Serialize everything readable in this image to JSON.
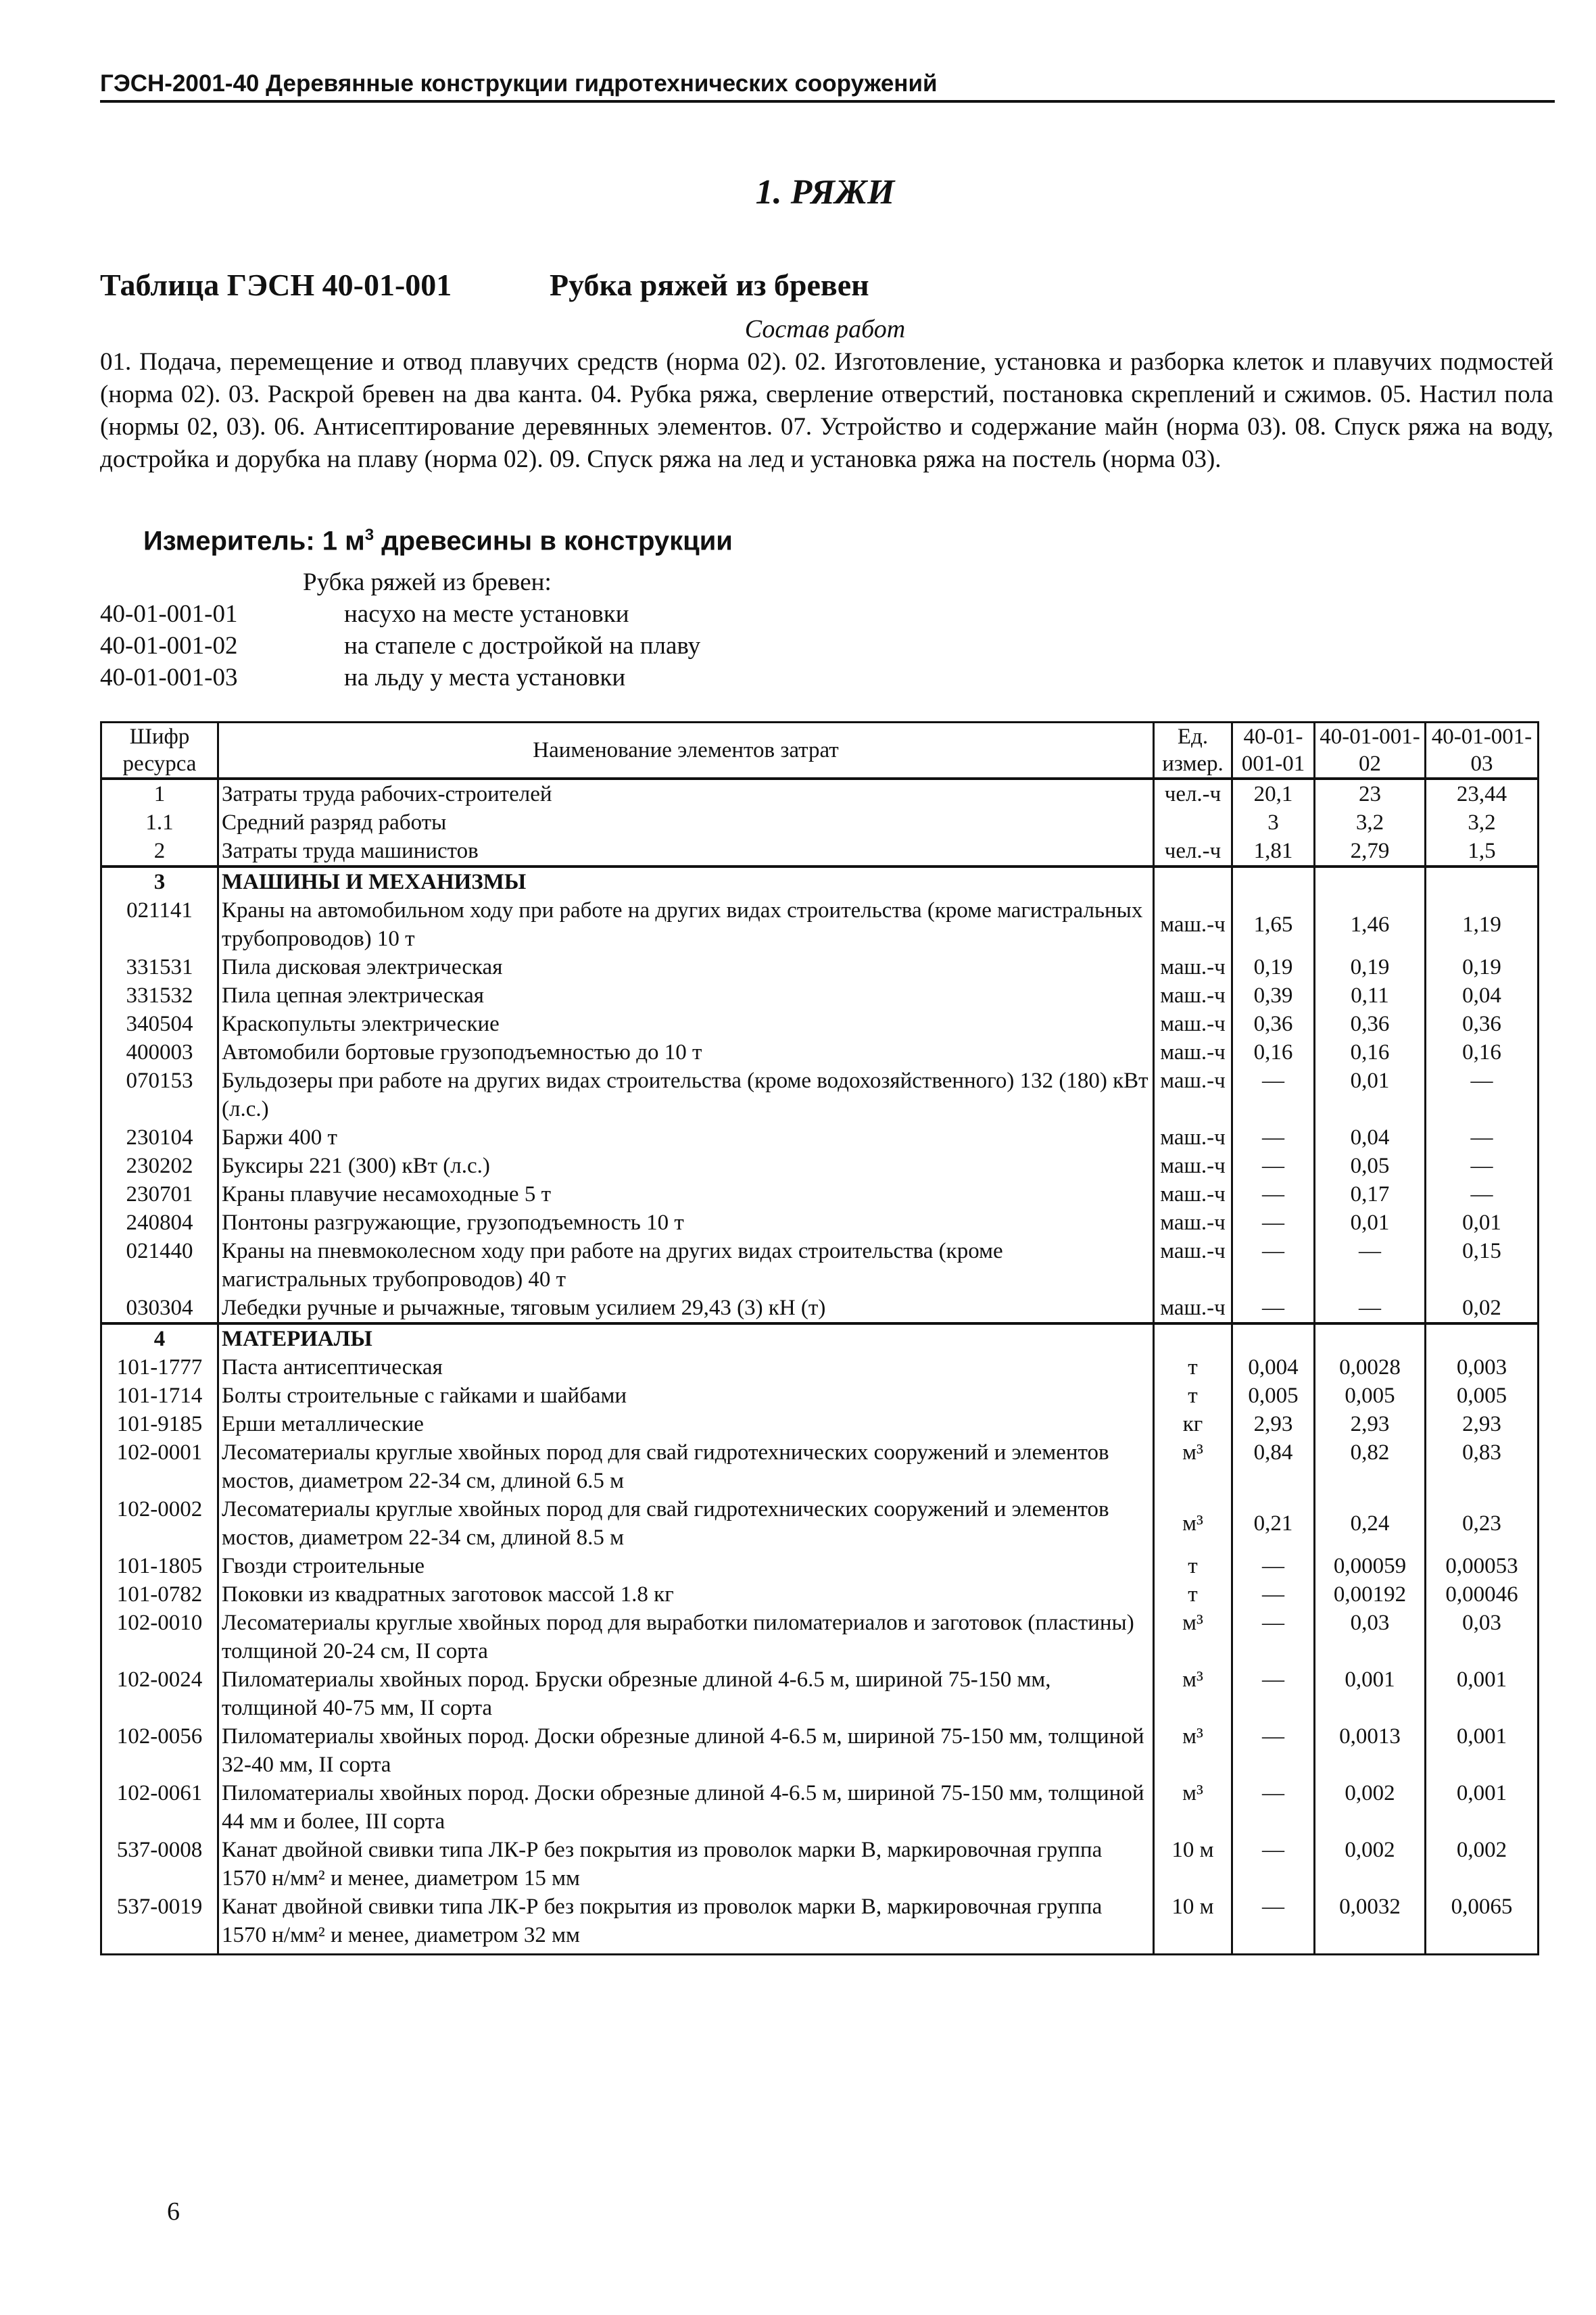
{
  "header": {
    "running_title": "ГЭСН-2001-40 Деревянные конструкции гидротехнических сооружений"
  },
  "section_title": "1. РЯЖИ",
  "table_code": "Таблица ГЭСН 40-01-001",
  "table_title": "Рубка ряжей из бревен",
  "work_heading": "Состав работ",
  "work_text": "01. Подача, перемещение и отвод плавучих средств (норма 02). 02. Изготовление, установка и разборка клеток и плавучих подмостей (норма 02). 03. Раскрой бревен на два канта. 04. Рубка ряжа, сверление отверстий, постановка скреплений и сжимов. 05. Настил пола (нормы 02, 03). 06. Антисептирование деревянных элементов. 07. Устройство и содержание майн (норма 03). 08. Спуск ряжа на воду, достройка и дорубка на плаву (норма 02). 09. Спуск ряжа на лед и установка ряжа на постель (норма 03).",
  "measure": {
    "prefix": "Измеритель: 1 м",
    "sup": "3",
    "suffix": " древесины в конструкции"
  },
  "variants": {
    "heading": "Рубка ряжей из бревен:",
    "items": [
      {
        "code": "40-01-001-01",
        "text": "насухо на месте установки"
      },
      {
        "code": "40-01-001-02",
        "text": "на стапеле с достройкой на плаву"
      },
      {
        "code": "40-01-001-03",
        "text": "на льду у места установки"
      }
    ]
  },
  "table": {
    "headers": [
      "Шифр ресурса",
      "Наименование элементов затрат",
      "Ед. измер.",
      "40-01-001-01",
      "40-01-001-02",
      "40-01-001-03"
    ],
    "rows": [
      {
        "code": "1",
        "name": "Затраты труда рабочих-строителей",
        "unit": "чел.-ч",
        "v": [
          "20,1",
          "23",
          "23,44"
        ],
        "sec": true
      },
      {
        "code": "1.1",
        "name": "Средний разряд работы",
        "unit": "",
        "v": [
          "3",
          "3,2",
          "3,2"
        ]
      },
      {
        "code": "2",
        "name": "Затраты труда машинистов",
        "unit": "чел.-ч",
        "v": [
          "1,81",
          "2,79",
          "1,5"
        ]
      },
      {
        "code": "3",
        "name": "МАШИНЫ И МЕХАНИЗМЫ",
        "unit": "",
        "v": [
          "",
          "",
          ""
        ],
        "sec": true,
        "bold": true
      },
      {
        "code": "021141",
        "name": "Краны на автомобильном ходу при работе на других видах строительства (кроме магистральных трубопроводов) 10 т",
        "unit": "маш.-ч",
        "v": [
          "1,65",
          "1,46",
          "1,19"
        ],
        "mid": true
      },
      {
        "code": "331531",
        "name": "Пила дисковая электрическая",
        "unit": "маш.-ч",
        "v": [
          "0,19",
          "0,19",
          "0,19"
        ]
      },
      {
        "code": "331532",
        "name": "Пила цепная электрическая",
        "unit": "маш.-ч",
        "v": [
          "0,39",
          "0,11",
          "0,04"
        ]
      },
      {
        "code": "340504",
        "name": "Краскопульты электрические",
        "unit": "маш.-ч",
        "v": [
          "0,36",
          "0,36",
          "0,36"
        ]
      },
      {
        "code": "400003",
        "name": "Автомобили бортовые грузоподъемностью до 10 т",
        "unit": "маш.-ч",
        "v": [
          "0,16",
          "0,16",
          "0,16"
        ]
      },
      {
        "code": "070153",
        "name": "Бульдозеры при работе на других видах строительства (кроме водохозяйственного) 132 (180) кВт (л.с.)",
        "unit": "маш.-ч",
        "v": [
          "—",
          "0,01",
          "—"
        ]
      },
      {
        "code": "230104",
        "name": "Баржи 400 т",
        "unit": "маш.-ч",
        "v": [
          "—",
          "0,04",
          "—"
        ]
      },
      {
        "code": "230202",
        "name": "Буксиры 221 (300) кВт (л.с.)",
        "unit": "маш.-ч",
        "v": [
          "—",
          "0,05",
          "—"
        ]
      },
      {
        "code": "230701",
        "name": "Краны плавучие несамоходные 5 т",
        "unit": "маш.-ч",
        "v": [
          "—",
          "0,17",
          "—"
        ]
      },
      {
        "code": "240804",
        "name": "Понтоны разгружающие, грузоподъемность 10 т",
        "unit": "маш.-ч",
        "v": [
          "—",
          "0,01",
          "0,01"
        ]
      },
      {
        "code": "021440",
        "name": "Краны на пневмоколесном ходу при работе на других видах строительства (кроме магистральных трубопроводов) 40 т",
        "unit": "маш.-ч",
        "v": [
          "—",
          "—",
          "0,15"
        ]
      },
      {
        "code": "030304",
        "name": "Лебедки ручные и рычажные, тяговым усилием 29,43 (3) кН (т)",
        "unit": "маш.-ч",
        "v": [
          "—",
          "—",
          "0,02"
        ]
      },
      {
        "code": "4",
        "name": "МАТЕРИАЛЫ",
        "unit": "",
        "v": [
          "",
          "",
          ""
        ],
        "sec": true,
        "bold": true
      },
      {
        "code": "101-1777",
        "name": "Паста антисептическая",
        "unit": "т",
        "v": [
          "0,004",
          "0,0028",
          "0,003"
        ]
      },
      {
        "code": "101-1714",
        "name": "Болты строительные с гайками и шайбами",
        "unit": "т",
        "v": [
          "0,005",
          "0,005",
          "0,005"
        ]
      },
      {
        "code": "101-9185",
        "name": "Ерши металлические",
        "unit": "кг",
        "v": [
          "2,93",
          "2,93",
          "2,93"
        ]
      },
      {
        "code": "102-0001",
        "name": "Лесоматериалы круглые хвойных пород для свай гидротехнических сооружений и элементов мостов, диаметром 22-34 см, длиной 6.5 м",
        "unit": "м³",
        "v": [
          "0,84",
          "0,82",
          "0,83"
        ]
      },
      {
        "code": "102-0002",
        "name": "Лесоматериалы круглые хвойных пород для свай гидротехнических сооружений и элементов мостов, диаметром 22-34 см, длиной 8.5 м",
        "unit": "м³",
        "v": [
          "0,21",
          "0,24",
          "0,23"
        ],
        "mid": true
      },
      {
        "code": "101-1805",
        "name": "Гвозди строительные",
        "unit": "т",
        "v": [
          "—",
          "0,00059",
          "0,00053"
        ]
      },
      {
        "code": "101-0782",
        "name": "Поковки из квадратных заготовок массой 1.8 кг",
        "unit": "т",
        "v": [
          "—",
          "0,00192",
          "0,00046"
        ]
      },
      {
        "code": "102-0010",
        "name": "Лесоматериалы круглые хвойных пород для выработки пиломатериалов и заготовок (пластины) толщиной 20-24 см, II сорта",
        "unit": "м³",
        "v": [
          "—",
          "0,03",
          "0,03"
        ]
      },
      {
        "code": "102-0024",
        "name": "Пиломатериалы хвойных пород. Бруски обрезные длиной 4-6.5 м, шириной 75-150 мм, толщиной 40-75 мм, II сорта",
        "unit": "м³",
        "v": [
          "—",
          "0,001",
          "0,001"
        ]
      },
      {
        "code": "102-0056",
        "name": "Пиломатериалы хвойных пород. Доски обрезные длиной 4-6.5 м, шириной 75-150 мм, толщиной 32-40 мм, II сорта",
        "unit": "м³",
        "v": [
          "—",
          "0,0013",
          "0,001"
        ]
      },
      {
        "code": "102-0061",
        "name": "Пиломатериалы хвойных пород. Доски обрезные длиной 4-6.5 м, шириной 75-150 мм, толщиной 44 мм и более, III сорта",
        "unit": "м³",
        "v": [
          "—",
          "0,002",
          "0,001"
        ]
      },
      {
        "code": "537-0008",
        "name": "Канат двойной свивки типа ЛК-Р без покрытия из проволок марки В, маркировочная группа 1570 н/мм² и менее, диаметром 15 мм",
        "unit": "10 м",
        "v": [
          "—",
          "0,002",
          "0,002"
        ]
      },
      {
        "code": "537-0019",
        "name": "Канат двойной свивки типа ЛК-Р без покрытия из проволок марки В, маркировочная группа 1570 н/мм² и менее, диаметром 32 мм",
        "unit": "10 м",
        "v": [
          "—",
          "0,0032",
          "0,0065"
        ]
      }
    ]
  },
  "page_number": "6"
}
